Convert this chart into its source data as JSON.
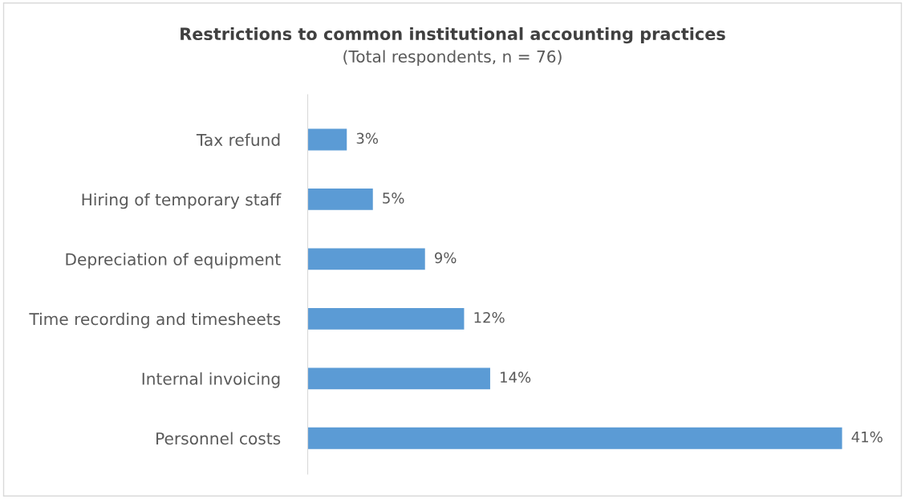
{
  "chart_data": {
    "type": "bar",
    "orientation": "horizontal",
    "title": "Restrictions to common institutional accounting practices",
    "subtitle": "(Total respondents, n = 76)",
    "categories": [
      "Tax refund",
      "Hiring of temporary staff",
      "Depreciation of equipment",
      "Time recording and timesheets",
      "Internal invoicing",
      "Personnel costs"
    ],
    "values": [
      3,
      5,
      9,
      12,
      14,
      41
    ],
    "value_labels": [
      "3%",
      "5%",
      "9%",
      "12%",
      "14%",
      "41%"
    ],
    "color": "#5b9bd5"
  }
}
